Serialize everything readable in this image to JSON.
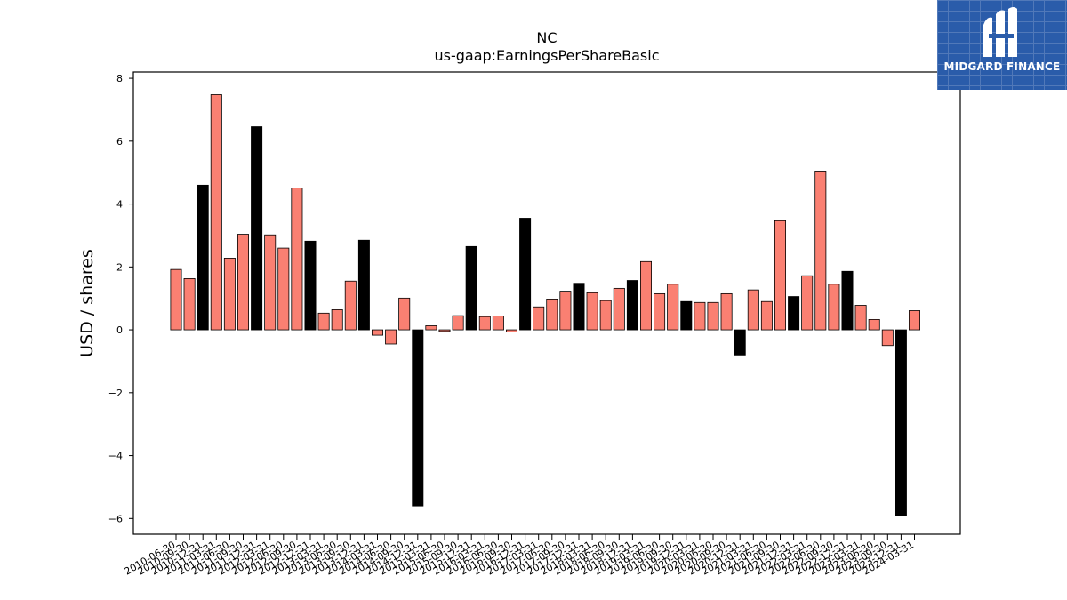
{
  "brand": {
    "name": "MIDGARD FINANCE",
    "bg_color": "#2a5caa",
    "icon": "midgard-logo-icon"
  },
  "colors": {
    "positive": "#fa8072",
    "highlight": "#000000"
  },
  "chart_data": {
    "type": "bar",
    "title": "NC",
    "subtitle": "us-gaap:EarningsPerShareBasic",
    "xlabel": "",
    "ylabel": "USD / shares",
    "ylim": [
      -6.5,
      8.2
    ],
    "yticks": [
      -6,
      -4,
      -2,
      0,
      2,
      4,
      6,
      8
    ],
    "grid": false,
    "categories": [
      "2010-06-30",
      "2010-09-30",
      "2010-12-31",
      "2011-03-31",
      "2011-06-30",
      "2011-09-30",
      "2011-12-31",
      "2012-03-31",
      "2012-06-30",
      "2012-09-30",
      "2012-12-31",
      "2013-03-31",
      "2013-06-30",
      "2013-09-30",
      "2013-12-31",
      "2014-03-31",
      "2014-06-30",
      "2014-09-30",
      "2014-12-31",
      "2015-03-31",
      "2015-06-30",
      "2015-09-30",
      "2015-12-31",
      "2016-03-31",
      "2016-06-30",
      "2016-09-30",
      "2016-12-31",
      "2017-03-31",
      "2017-06-30",
      "2017-09-30",
      "2017-12-31",
      "2018-03-31",
      "2018-06-30",
      "2018-09-30",
      "2018-12-31",
      "2019-03-31",
      "2019-06-30",
      "2019-09-30",
      "2019-12-31",
      "2020-03-31",
      "2020-06-30",
      "2020-09-30",
      "2020-12-31",
      "2021-03-31",
      "2021-06-30",
      "2021-09-30",
      "2021-12-31",
      "2022-03-31",
      "2022-06-30",
      "2022-09-30",
      "2022-12-31",
      "2023-03-31",
      "2023-06-30",
      "2023-09-30",
      "2023-12-31",
      "2024-03-31"
    ],
    "values": [
      1.92,
      1.63,
      4.6,
      7.48,
      2.28,
      3.04,
      6.46,
      3.02,
      2.6,
      4.51,
      2.82,
      0.53,
      0.64,
      1.55,
      2.85,
      -0.17,
      -0.45,
      1.01,
      -5.6,
      0.13,
      -0.05,
      0.45,
      2.65,
      0.42,
      0.44,
      -0.07,
      3.55,
      0.73,
      0.98,
      1.23,
      1.48,
      1.18,
      0.93,
      1.32,
      1.57,
      2.17,
      1.15,
      1.45,
      0.9,
      0.87,
      0.87,
      1.15,
      -0.8,
      1.27,
      0.9,
      3.47,
      1.06,
      1.72,
      5.05,
      1.45,
      1.86,
      0.78,
      0.33,
      -0.5,
      -5.9,
      0.61
    ],
    "highlight_indices": [
      2,
      6,
      10,
      14,
      18,
      22,
      26,
      30,
      34,
      38,
      42,
      46,
      50,
      54
    ]
  }
}
